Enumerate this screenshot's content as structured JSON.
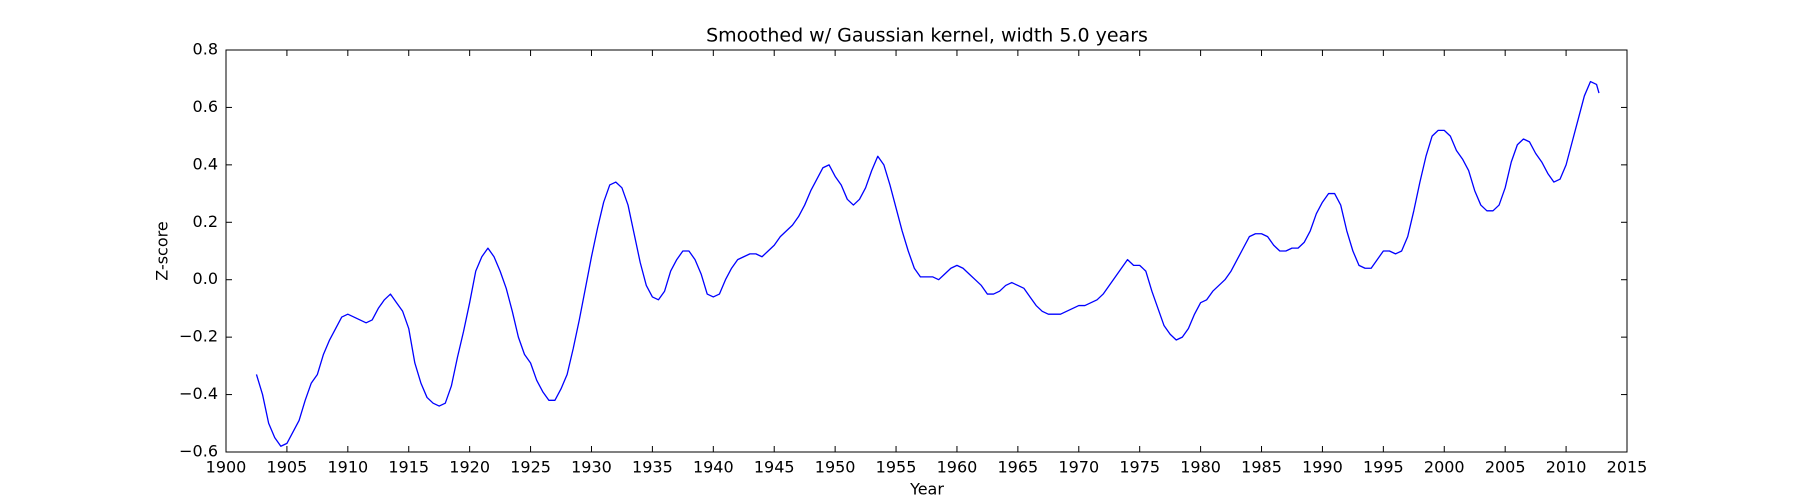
{
  "chart_data": {
    "type": "line",
    "title": "Smoothed w/ Gaussian kernel, width 5.0 years",
    "xlabel": "Year",
    "ylabel": "Z-score",
    "xlim": [
      1900,
      2015
    ],
    "ylim": [
      -0.6,
      0.8
    ],
    "xticks": [
      1900,
      1905,
      1910,
      1915,
      1920,
      1925,
      1930,
      1935,
      1940,
      1945,
      1950,
      1955,
      1960,
      1965,
      1970,
      1975,
      1980,
      1985,
      1990,
      1995,
      2000,
      2005,
      2010,
      2015
    ],
    "yticks": [
      {
        "value": -0.6,
        "label": "−0.6"
      },
      {
        "value": -0.4,
        "label": "−0.4"
      },
      {
        "value": -0.2,
        "label": "−0.2"
      },
      {
        "value": 0,
        "label": "0.0"
      },
      0.2,
      0.4,
      0.6,
      0.8
    ],
    "grid": false,
    "x": [
      1902.5,
      1903,
      1903.5,
      1904,
      1904.5,
      1905,
      1905.5,
      1906,
      1906.5,
      1907,
      1907.5,
      1908,
      1908.5,
      1909,
      1909.5,
      1910,
      1910.5,
      1911,
      1911.5,
      1912,
      1912.5,
      1913,
      1913.5,
      1914,
      1914.5,
      1915,
      1915.5,
      1916,
      1916.5,
      1917,
      1917.5,
      1918,
      1918.5,
      1919,
      1919.5,
      1920,
      1920.5,
      1921,
      1921.5,
      1922,
      1922.5,
      1923,
      1923.5,
      1924,
      1924.5,
      1925,
      1925.5,
      1926,
      1926.5,
      1927,
      1927.5,
      1928,
      1928.5,
      1929,
      1929.5,
      1930,
      1930.5,
      1931,
      1931.5,
      1932,
      1932.5,
      1933,
      1933.5,
      1934,
      1934.5,
      1935,
      1935.5,
      1936,
      1936.5,
      1937,
      1937.5,
      1938,
      1938.5,
      1939,
      1939.5,
      1940,
      1940.5,
      1941,
      1941.5,
      1942,
      1942.5,
      1943,
      1943.5,
      1944,
      1944.5,
      1945,
      1945.5,
      1946,
      1946.5,
      1947,
      1947.5,
      1948,
      1948.5,
      1949,
      1949.5,
      1950,
      1950.5,
      1951,
      1951.5,
      1952,
      1952.5,
      1953,
      1953.5,
      1954,
      1954.5,
      1955,
      1955.5,
      1956,
      1956.5,
      1957,
      1957.5,
      1958,
      1958.5,
      1959,
      1959.5,
      1960,
      1960.5,
      1961,
      1961.5,
      1962,
      1962.5,
      1963,
      1963.5,
      1964,
      1964.5,
      1965,
      1965.5,
      1966,
      1966.5,
      1967,
      1967.5,
      1968,
      1968.5,
      1969,
      1969.5,
      1970,
      1970.5,
      1971,
      1971.5,
      1972,
      1972.5,
      1973,
      1973.5,
      1974,
      1974.5,
      1975,
      1975.5,
      1976,
      1976.5,
      1977,
      1977.5,
      1978,
      1978.5,
      1979,
      1979.5,
      1980,
      1980.5,
      1981,
      1981.5,
      1982,
      1982.5,
      1983,
      1983.5,
      1984,
      1984.5,
      1985,
      1985.5,
      1986,
      1986.5,
      1987,
      1987.5,
      1988,
      1988.5,
      1989,
      1989.5,
      1990,
      1990.5,
      1991,
      1991.5,
      1992,
      1992.5,
      1993,
      1993.5,
      1994,
      1994.5,
      1995,
      1995.5,
      1996,
      1996.5,
      1997,
      1997.5,
      1998,
      1998.5,
      1999,
      1999.5,
      2000,
      2000.5,
      2001,
      2001.5,
      2002,
      2002.5,
      2003,
      2003.5,
      2004,
      2004.5,
      2005,
      2005.5,
      2006,
      2006.5,
      2007,
      2007.5,
      2008,
      2008.5,
      2009,
      2009.5,
      2010,
      2010.5,
      2011,
      2011.5,
      2012,
      2012.5,
      2012.7
    ],
    "series": [
      {
        "color": "#0000ff",
        "values": [
          -0.33,
          -0.4,
          -0.5,
          -0.55,
          -0.58,
          -0.57,
          -0.53,
          -0.49,
          -0.42,
          -0.36,
          -0.33,
          -0.26,
          -0.21,
          -0.17,
          -0.13,
          -0.12,
          -0.13,
          -0.14,
          -0.15,
          -0.14,
          -0.1,
          -0.07,
          -0.05,
          -0.08,
          -0.11,
          -0.17,
          -0.29,
          -0.36,
          -0.41,
          -0.43,
          -0.44,
          -0.43,
          -0.37,
          -0.27,
          -0.18,
          -0.08,
          0.03,
          0.08,
          0.11,
          0.08,
          0.03,
          -0.03,
          -0.11,
          -0.2,
          -0.26,
          -0.29,
          -0.35,
          -0.39,
          -0.42,
          -0.42,
          -0.38,
          -0.33,
          -0.24,
          -0.14,
          -0.03,
          0.08,
          0.18,
          0.27,
          0.33,
          0.34,
          0.32,
          0.26,
          0.16,
          0.06,
          -0.02,
          -0.06,
          -0.07,
          -0.04,
          0.03,
          0.07,
          0.1,
          0.1,
          0.07,
          0.02,
          -0.05,
          -0.06,
          -0.05,
          0.0,
          0.04,
          0.07,
          0.08,
          0.09,
          0.09,
          0.08,
          0.1,
          0.12,
          0.15,
          0.17,
          0.19,
          0.22,
          0.26,
          0.31,
          0.35,
          0.39,
          0.4,
          0.36,
          0.33,
          0.28,
          0.26,
          0.28,
          0.32,
          0.38,
          0.43,
          0.4,
          0.33,
          0.25,
          0.17,
          0.1,
          0.04,
          0.01,
          0.01,
          0.01,
          0.0,
          0.02,
          0.04,
          0.05,
          0.04,
          0.02,
          0.0,
          -0.02,
          -0.05,
          -0.05,
          -0.04,
          -0.02,
          -0.01,
          -0.02,
          -0.03,
          -0.06,
          -0.09,
          -0.11,
          -0.12,
          -0.12,
          -0.12,
          -0.11,
          -0.1,
          -0.09,
          -0.09,
          -0.08,
          -0.07,
          -0.05,
          -0.02,
          0.01,
          0.04,
          0.07,
          0.05,
          0.05,
          0.03,
          -0.04,
          -0.1,
          -0.16,
          -0.19,
          -0.21,
          -0.2,
          -0.17,
          -0.12,
          -0.08,
          -0.07,
          -0.04,
          -0.02,
          0.0,
          0.03,
          0.07,
          0.11,
          0.15,
          0.16,
          0.16,
          0.15,
          0.12,
          0.1,
          0.1,
          0.11,
          0.11,
          0.13,
          0.17,
          0.23,
          0.27,
          0.3,
          0.3,
          0.26,
          0.17,
          0.1,
          0.05,
          0.04,
          0.04,
          0.07,
          0.1,
          0.1,
          0.09,
          0.1,
          0.15,
          0.24,
          0.34,
          0.43,
          0.5,
          0.52,
          0.52,
          0.5,
          0.45,
          0.42,
          0.38,
          0.31,
          0.26,
          0.24,
          0.24,
          0.26,
          0.32,
          0.41,
          0.47,
          0.49,
          0.48,
          0.44,
          0.41,
          0.37,
          0.34,
          0.35,
          0.4,
          0.48,
          0.56,
          0.64,
          0.69,
          0.68,
          0.65
        ]
      }
    ]
  }
}
